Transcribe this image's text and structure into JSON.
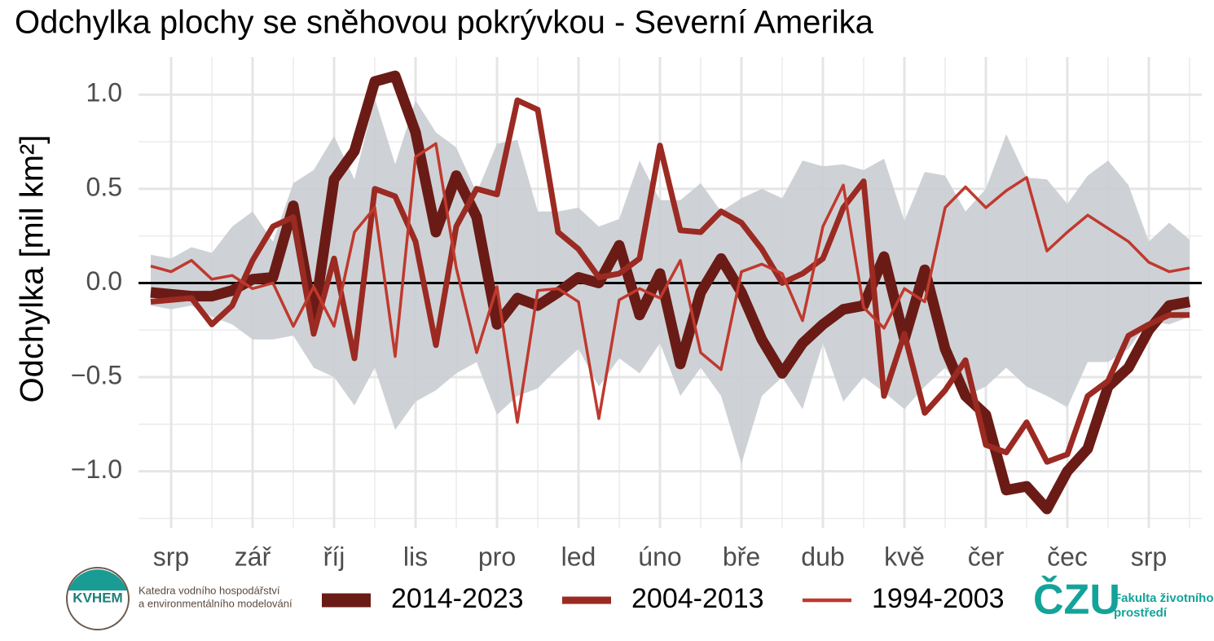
{
  "chart_data": {
    "type": "line",
    "title": "Odchylka plochy se sněhovou pokrývkou - Severní Amerika",
    "ylabel": "Odchylka [mil km²]",
    "xlim": [
      -0.4,
      12.65
    ],
    "xticks": [
      {
        "value": 0,
        "label": "srp"
      },
      {
        "value": 1,
        "label": "zář"
      },
      {
        "value": 2,
        "label": "říj"
      },
      {
        "value": 3,
        "label": "lis"
      },
      {
        "value": 4,
        "label": "pro"
      },
      {
        "value": 5,
        "label": "led"
      },
      {
        "value": 6,
        "label": "úno"
      },
      {
        "value": 7,
        "label": "bře"
      },
      {
        "value": 8,
        "label": "dub"
      },
      {
        "value": 9,
        "label": "kvě"
      },
      {
        "value": 10,
        "label": "čer"
      },
      {
        "value": 11,
        "label": "čec"
      },
      {
        "value": 12,
        "label": "srp"
      }
    ],
    "ylim": [
      -1.3,
      1.2
    ],
    "yticks": [
      {
        "value": -1,
        "label": "−1.0"
      },
      {
        "value": -0.5,
        "label": "−0.5"
      },
      {
        "value": 0,
        "label": "0.0"
      },
      {
        "value": 0.5,
        "label": "0.5"
      },
      {
        "value": 1,
        "label": "1.0"
      }
    ],
    "grid": true,
    "hline": 0,
    "legend": "bottom",
    "x": [
      -0.25,
      0,
      0.25,
      0.5,
      0.75,
      1,
      1.25,
      1.5,
      1.75,
      2,
      2.25,
      2.5,
      2.75,
      3,
      3.25,
      3.5,
      3.75,
      4,
      4.25,
      4.5,
      4.75,
      5,
      5.25,
      5.5,
      5.75,
      6,
      6.25,
      6.5,
      6.75,
      7,
      7.25,
      7.5,
      7.75,
      8,
      8.25,
      8.5,
      8.75,
      9,
      9.25,
      9.5,
      9.75,
      10,
      10.25,
      10.5,
      10.75,
      11,
      11.25,
      11.5,
      11.75,
      12,
      12.25,
      12.5
    ],
    "band": {
      "color": "#c9cdd2",
      "upper": [
        0.15,
        0.13,
        0.19,
        0.16,
        0.3,
        0.38,
        0.22,
        0.53,
        0.6,
        0.78,
        0.55,
        0.98,
        0.63,
        0.97,
        0.8,
        0.72,
        0.48,
        0.74,
        0.76,
        0.38,
        0.38,
        0.4,
        0.3,
        0.34,
        0.65,
        0.44,
        0.44,
        0.53,
        0.38,
        0.45,
        0.5,
        0.45,
        0.65,
        0.62,
        0.63,
        0.6,
        0.66,
        0.33,
        0.59,
        0.57,
        0.38,
        0.5,
        0.79,
        0.56,
        0.55,
        0.42,
        0.57,
        0.65,
        0.52,
        0.22,
        0.32,
        0.23
      ],
      "lower": [
        -0.12,
        -0.14,
        -0.12,
        -0.18,
        -0.22,
        -0.3,
        -0.3,
        -0.28,
        -0.45,
        -0.5,
        -0.65,
        -0.45,
        -0.78,
        -0.63,
        -0.57,
        -0.48,
        -0.42,
        -0.7,
        -0.6,
        -0.56,
        -0.45,
        -0.35,
        -0.55,
        -0.4,
        -0.48,
        -0.32,
        -0.6,
        -0.45,
        -0.6,
        -0.96,
        -0.6,
        -0.5,
        -0.67,
        -0.32,
        -0.63,
        -0.5,
        -0.58,
        -0.67,
        -0.55,
        -0.45,
        -0.6,
        -0.55,
        -0.45,
        -0.55,
        -0.6,
        -0.66,
        -0.42,
        -0.42,
        -0.35,
        -0.2,
        -0.22,
        -0.18
      ]
    },
    "series": [
      {
        "name": "2014-2023",
        "color": "#6b1b15",
        "width": 13,
        "values": [
          -0.05,
          -0.06,
          -0.07,
          -0.07,
          -0.04,
          0.02,
          0.03,
          0.41,
          -0.2,
          0.55,
          0.7,
          1.07,
          1.1,
          0.8,
          0.27,
          0.57,
          0.35,
          -0.22,
          -0.08,
          -0.12,
          -0.05,
          0.03,
          0,
          0.2,
          -0.17,
          0.05,
          -0.43,
          -0.05,
          0.13,
          -0.05,
          -0.3,
          -0.48,
          -0.32,
          -0.22,
          -0.14,
          -0.12,
          0.14,
          -0.3,
          0.07,
          -0.35,
          -0.6,
          -0.7,
          -1.1,
          -1.08,
          -1.2,
          -1,
          -0.88,
          -0.55,
          -0.45,
          -0.25,
          -0.12,
          -0.1
        ]
      },
      {
        "name": "2004-2013",
        "color": "#9b2a22",
        "width": 7,
        "values": [
          -0.1,
          -0.09,
          -0.08,
          -0.22,
          -0.12,
          0.12,
          0.3,
          0.35,
          -0.27,
          0.13,
          -0.4,
          0.5,
          0.46,
          0.22,
          -0.33,
          0.3,
          0.5,
          0.47,
          0.97,
          0.92,
          0.27,
          0.18,
          0.03,
          0.05,
          0.13,
          0.73,
          0.28,
          0.27,
          0.38,
          0.32,
          0.18,
          0,
          0.05,
          0.13,
          0.4,
          0.54,
          -0.6,
          -0.27,
          -0.69,
          -0.57,
          -0.41,
          -0.86,
          -0.9,
          -0.74,
          -0.95,
          -0.91,
          -0.6,
          -0.52,
          -0.28,
          -0.22,
          -0.17,
          -0.17
        ]
      },
      {
        "name": "1994-2003",
        "color": "#c0392e",
        "width": 3.5,
        "values": [
          0.09,
          0.06,
          0.12,
          0.02,
          0.04,
          -0.03,
          0,
          -0.23,
          -0.02,
          -0.23,
          0.27,
          0.4,
          -0.39,
          0.67,
          0.74,
          0.08,
          -0.37,
          -0.02,
          -0.74,
          -0.04,
          -0.03,
          -0.1,
          -0.72,
          -0.09,
          -0.03,
          -0.08,
          0.12,
          -0.37,
          -0.46,
          0.06,
          0.1,
          0.05,
          -0.2,
          0.3,
          0.52,
          -0.13,
          -0.24,
          -0.03,
          -0.1,
          0.4,
          0.51,
          0.4,
          0.49,
          0.56,
          0.17,
          0.27,
          0.36,
          0.29,
          0.22,
          0.11,
          0.06,
          0.08
        ]
      }
    ]
  },
  "footer": {
    "left_logo": "KVHEM",
    "left_text": [
      "Katedra vodního hospodářství",
      "a environmentálního modelování"
    ],
    "right_logo": "ČZU",
    "right_text": [
      "Fakulta životního",
      "prostředí"
    ]
  }
}
